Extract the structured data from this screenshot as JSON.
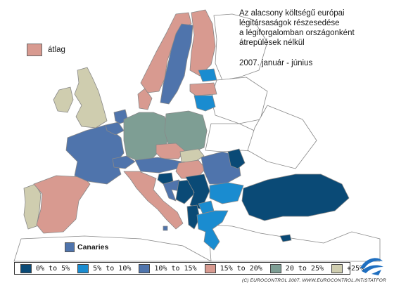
{
  "title_lines": [
    "Az alacsony költségű európai",
    "légitársaságok részesedése",
    "a légiforgalomban országonként",
    "átrepülések nélkül"
  ],
  "subtitle": "2007. január - június",
  "average_legend": {
    "label": "átlag",
    "color": "#d89a90"
  },
  "canaries": {
    "label": "Canaries",
    "color": "#4f74ac"
  },
  "legend": [
    {
      "label": "0% to 5%",
      "color": "#0a4a76"
    },
    {
      "label": "5% to 10%",
      "color": "#1a8cd0"
    },
    {
      "label": "10% to 15%",
      "color": "#4f74ac"
    },
    {
      "label": "15% to 20%",
      "color": "#d89a90"
    },
    {
      "label": "20 to 25%",
      "color": "#7e9e94"
    },
    {
      "label": "+25%",
      "color": "#cfcdaf"
    }
  ],
  "copyright": "(C) EUROCONTROL 2007.   WWW.EUROCONTROL.INT/STATFOR",
  "land_colors": {
    "non_europe": "#ffffff",
    "border": "#888888"
  },
  "countries": [
    {
      "name": "Portugal",
      "category": "+25%"
    },
    {
      "name": "Spain",
      "category": "15% to 20%"
    },
    {
      "name": "France",
      "category": "10% to 15%"
    },
    {
      "name": "Ireland",
      "category": "+25%"
    },
    {
      "name": "United Kingdom",
      "category": "+25%"
    },
    {
      "name": "Belgium",
      "category": "10% to 15%"
    },
    {
      "name": "Netherlands",
      "category": "10% to 15%"
    },
    {
      "name": "Switzerland",
      "category": "10% to 15%"
    },
    {
      "name": "Germany",
      "category": "20 to 25%"
    },
    {
      "name": "Denmark",
      "category": "15% to 20%"
    },
    {
      "name": "Norway",
      "category": "15% to 20%"
    },
    {
      "name": "Sweden",
      "category": "10% to 15%"
    },
    {
      "name": "Finland",
      "category": "15% to 20%"
    },
    {
      "name": "Estonia",
      "category": "5% to 10%"
    },
    {
      "name": "Latvia",
      "category": "15% to 20%"
    },
    {
      "name": "Lithuania",
      "category": "5% to 10%"
    },
    {
      "name": "Poland",
      "category": "20 to 25%"
    },
    {
      "name": "Czech Republic",
      "category": "15% to 20%"
    },
    {
      "name": "Slovakia",
      "category": "+25%"
    },
    {
      "name": "Austria",
      "category": "10% to 15%"
    },
    {
      "name": "Hungary",
      "category": "15% to 20%"
    },
    {
      "name": "Slovenia",
      "category": "0% to 5%"
    },
    {
      "name": "Croatia",
      "category": "10% to 15%"
    },
    {
      "name": "Italy",
      "category": "15% to 20%"
    },
    {
      "name": "Bosnia and Herzegovina",
      "category": "0% to 5%"
    },
    {
      "name": "Serbia",
      "category": "0% to 5%"
    },
    {
      "name": "Romania",
      "category": "10% to 15%"
    },
    {
      "name": "Moldova",
      "category": "0% to 5%"
    },
    {
      "name": "Bulgaria",
      "category": "5% to 10%"
    },
    {
      "name": "Macedonia",
      "category": "5% to 10%"
    },
    {
      "name": "Albania",
      "category": "0% to 5%"
    },
    {
      "name": "Greece",
      "category": "5% to 10%"
    },
    {
      "name": "Turkey",
      "category": "0% to 5%"
    },
    {
      "name": "Cyprus",
      "category": "0% to 5%"
    },
    {
      "name": "Malta",
      "category": "10% to 15%"
    }
  ]
}
